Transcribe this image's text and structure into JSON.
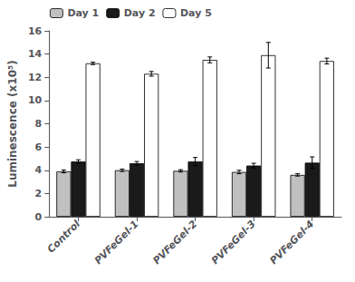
{
  "chart_data": {
    "type": "bar",
    "categories": [
      "Control",
      "PVFeGel-1",
      "PVFeGel-2",
      "PVFeGel-3",
      "PVFeGel-4"
    ],
    "series": [
      {
        "name": "Day 1",
        "color": "#c0c0c0",
        "values": [
          3.9,
          4.0,
          3.95,
          3.85,
          3.6
        ],
        "errors": [
          0.12,
          0.1,
          0.1,
          0.15,
          0.1
        ]
      },
      {
        "name": "Day 2",
        "color": "#1a1a1a",
        "values": [
          4.75,
          4.6,
          4.75,
          4.4,
          4.65
        ],
        "errors": [
          0.15,
          0.15,
          0.35,
          0.2,
          0.5
        ]
      },
      {
        "name": "Day 5",
        "color": "#ffffff",
        "values": [
          13.2,
          12.3,
          13.5,
          13.9,
          13.4
        ],
        "errors": [
          0.1,
          0.2,
          0.25,
          1.1,
          0.25
        ]
      }
    ],
    "ylabel": "Luminescence (x10⁵)",
    "ylim": [
      0,
      16
    ],
    "yticks": [
      0,
      2,
      4,
      6,
      8,
      10,
      12,
      14,
      16
    ],
    "grid": false,
    "legend": "upper left"
  }
}
